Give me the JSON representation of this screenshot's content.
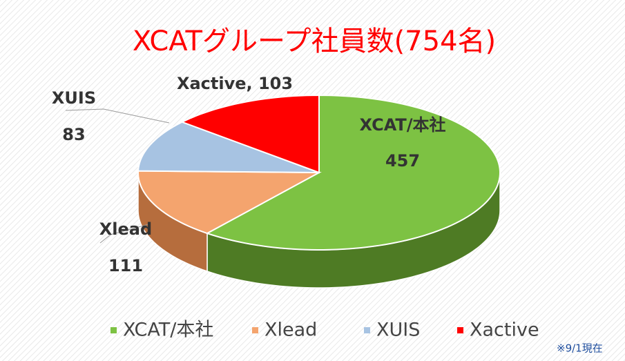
{
  "chart_data": {
    "type": "pie3d",
    "title": "XCATグループ社員数(754名)",
    "categories": [
      "XCAT/本社",
      "Xlead",
      "XUIS",
      "Xactive"
    ],
    "values": [
      457,
      111,
      83,
      103
    ],
    "value_labels": [
      "457",
      "111",
      "83",
      "Xactive, 103"
    ],
    "colors": [
      "#7dc243",
      "#f4a46e",
      "#a7c3e2",
      "#ff0000"
    ],
    "side_colors": [
      "#4e7b24",
      "#b66d3d",
      "#7890aa",
      "#b00000"
    ],
    "note": "※9/1現在"
  }
}
